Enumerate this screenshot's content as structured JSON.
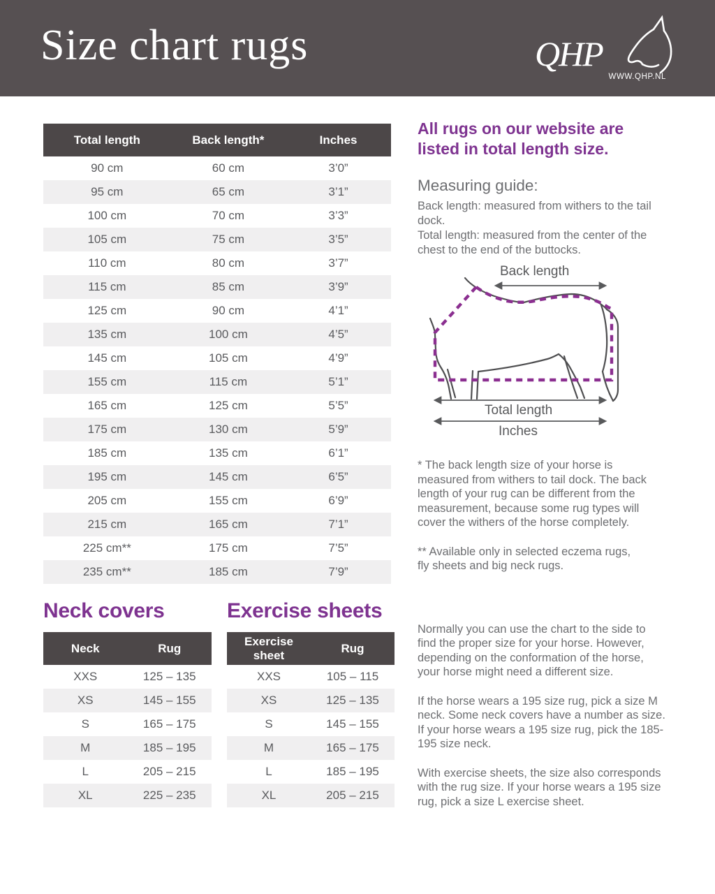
{
  "header": {
    "title": "Size chart rugs",
    "logo_text": "QHP",
    "logo_url": "WWW.QHP.NL"
  },
  "main_table": {
    "columns": [
      "Total length",
      "Back length*",
      "Inches"
    ],
    "rows": [
      [
        "90 cm",
        "60 cm",
        "3’0”"
      ],
      [
        "95 cm",
        "65 cm",
        "3’1”"
      ],
      [
        "100 cm",
        "70 cm",
        "3’3”"
      ],
      [
        "105 cm",
        "75 cm",
        "3’5”"
      ],
      [
        "110 cm",
        "80 cm",
        "3’7”"
      ],
      [
        "115 cm",
        "85 cm",
        "3’9”"
      ],
      [
        "125 cm",
        "90 cm",
        "4’1”"
      ],
      [
        "135 cm",
        "100 cm",
        "4’5”"
      ],
      [
        "145 cm",
        "105 cm",
        "4’9”"
      ],
      [
        "155 cm",
        "115 cm",
        "5’1”"
      ],
      [
        "165 cm",
        "125 cm",
        "5’5”"
      ],
      [
        "175 cm",
        "130 cm",
        "5’9”"
      ],
      [
        "185 cm",
        "135 cm",
        "6’1”"
      ],
      [
        "195 cm",
        "145 cm",
        "6’5”"
      ],
      [
        "205 cm",
        "155 cm",
        "6’9”"
      ],
      [
        "215 cm",
        "165 cm",
        "7’1”"
      ],
      [
        "225 cm**",
        "175 cm",
        "7’5”"
      ],
      [
        "235 cm**",
        "185 cm",
        "7’9”"
      ]
    ]
  },
  "sidebar": {
    "intro": "All rugs on our website are listed in total length size.",
    "measuring_guide_title": "Measuring guide:",
    "guide_line1": "Back length: measured from withers to the tail dock.",
    "guide_line2": "Total length: measured from the center of the chest to the end of the buttocks.",
    "diagram_labels": {
      "back_length": "Back length",
      "total_length": "Total length",
      "inches": "Inches"
    },
    "footnote1": "* The back length size of your horse is measured from withers to tail dock. The back length of your rug can be different from the measurement, because some rug types will cover the withers of the horse completely.",
    "footnote2": "** Available only in selected eczema rugs,\nfly sheets and big neck rugs."
  },
  "neck_covers": {
    "title": "Neck covers",
    "columns": [
      "Neck",
      "Rug"
    ],
    "rows": [
      [
        "XXS",
        "125 – 135"
      ],
      [
        "XS",
        "145 – 155"
      ],
      [
        "S",
        "165 – 175"
      ],
      [
        "M",
        "185 – 195"
      ],
      [
        "L",
        "205 – 215"
      ],
      [
        "XL",
        "225 – 235"
      ]
    ]
  },
  "exercise_sheets": {
    "title": "Exercise sheets",
    "columns": [
      "Exercise sheet",
      "Rug"
    ],
    "rows": [
      [
        "XXS",
        "105 – 115"
      ],
      [
        "XS",
        "125 – 135"
      ],
      [
        "S",
        "145 – 155"
      ],
      [
        "M",
        "165 – 175"
      ],
      [
        "L",
        "185 – 195"
      ],
      [
        "XL",
        "205 – 215"
      ]
    ]
  },
  "notes": [
    "Normally you can use the chart to the side to find the proper size for your horse.  However, depending on the conformation of the horse, your horse might need a different size.",
    "If the horse wears a 195 size rug, pick a size M neck. Some neck covers have a number as size. If your horse wears a 195 size rug, pick the 185-195 size neck.",
    "With exercise sheets, the size also corresponds with the rug size. If your horse wears a 195 size rug, pick a size L exercise sheet."
  ],
  "colors": {
    "header_band": "#565052",
    "table_header": "#4c4748",
    "row_alt": "#f0eff0",
    "accent_purple": "#7e3390",
    "body_text": "#6d6e71",
    "table_text": "#595a5d"
  }
}
